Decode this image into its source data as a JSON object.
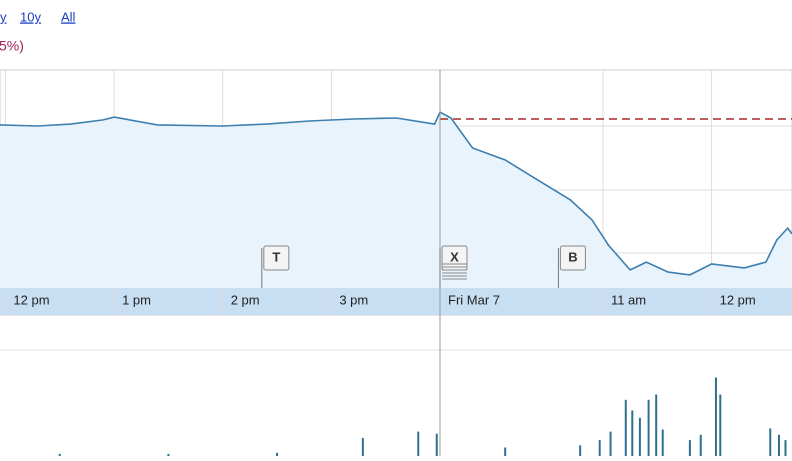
{
  "header": {
    "links": [
      "y",
      "10y",
      "All"
    ],
    "change": "5%)"
  },
  "chart_data": {
    "type": "line",
    "x": [
      -0.05,
      0.3,
      0.6,
      0.9,
      1.0,
      1.4,
      2.0,
      2.4,
      2.8,
      3.2,
      3.6,
      3.95,
      4.0,
      4.1,
      4.3,
      4.6,
      4.9,
      5.2,
      5.4,
      5.55,
      5.75,
      5.9,
      6.1,
      6.3,
      6.5,
      6.8,
      7.0,
      7.1,
      7.2,
      7.24
    ],
    "series": [
      {
        "color": "#3d7fb0",
        "values": [
          74.8,
          74.3,
          75.2,
          77.1,
          78.4,
          74.8,
          74.3,
          75.2,
          76.6,
          77.5,
          78.0,
          75.2,
          80.7,
          78.0,
          64.2,
          58.7,
          49.5,
          40.4,
          31.2,
          19.7,
          8.3,
          11.9,
          7.3,
          6.0,
          11.0,
          9.2,
          11.9,
          22.0,
          27.5,
          24.8
        ]
      }
    ],
    "fill_color": "#e8f3fb",
    "xlim": [
      -0.05,
      7.24
    ],
    "ylim": [
      0,
      100
    ],
    "xticks": [
      {
        "value": 0,
        "label": "12 pm"
      },
      {
        "value": 1,
        "label": "1 pm"
      },
      {
        "value": 2,
        "label": "2 pm"
      },
      {
        "value": 3,
        "label": "3 pm"
      },
      {
        "value": 4,
        "label": "Fri Mar 7"
      },
      {
        "value": 5.5,
        "label": "11 am"
      },
      {
        "value": 6.5,
        "label": "12 pm"
      }
    ],
    "prev_close": 77.5,
    "prev_close_color": "#a52a2a",
    "events": [
      {
        "label": "T",
        "x": 2.36
      },
      {
        "label": "X",
        "x": 4.0
      },
      {
        "label": "B",
        "x": 5.09
      }
    ],
    "volume": {
      "color": "#2f6f8f",
      "ylim": [
        0,
        100
      ],
      "x": [
        0.5,
        1.5,
        2.5,
        3.29,
        3.8,
        3.97,
        4.6,
        5.29,
        5.47,
        5.57,
        5.71,
        5.77,
        5.84,
        5.92,
        5.99,
        6.05,
        6.3,
        6.4,
        6.54,
        6.58,
        7.04,
        7.12,
        7.18
      ],
      "values": [
        2,
        2,
        3,
        17,
        23,
        21,
        8,
        10,
        15,
        23,
        53,
        43,
        36,
        53,
        58,
        25,
        15,
        20,
        74,
        58,
        26,
        20,
        15
      ]
    }
  }
}
